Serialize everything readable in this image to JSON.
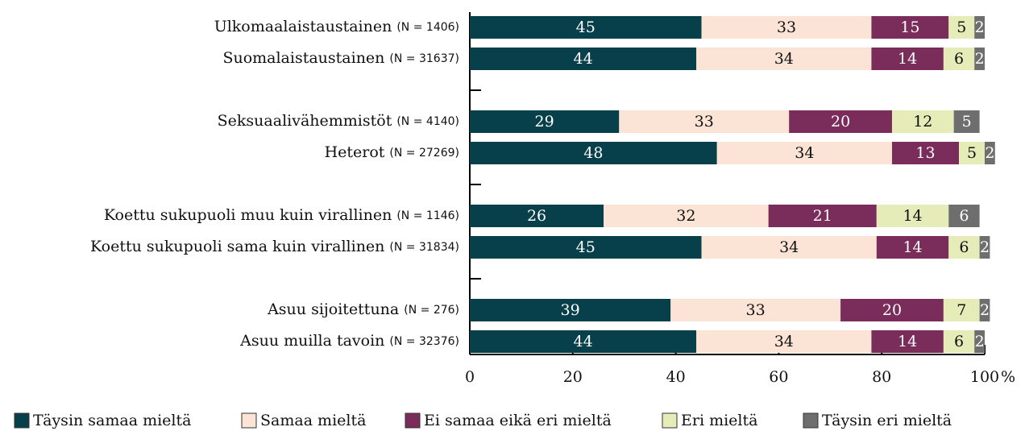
{
  "chart_data": {
    "type": "stacked_bar_horizontal",
    "categories": [
      "Ulkomaalaistaustainen",
      "Suomalaistaustainen",
      null,
      "Seksuaalivähemmistöt",
      "Heterot",
      null,
      "Koettu sukupuoli muu kuin virallinen",
      "Koettu sukupuoli sama kuin virallinen",
      null,
      "Asuu sijoitettuna",
      "Asuu muilla tavoin"
    ],
    "n_labels": [
      "(N = 1406)",
      "(N = 31637)",
      null,
      "(N = 4140)",
      "(N = 27269)",
      null,
      "(N = 1146)",
      "(N = 31834)",
      null,
      "(N = 276)",
      "(N = 32376)"
    ],
    "series": [
      {
        "name": "Täysin samaa mieltä",
        "color": "#073f4b",
        "values": [
          45,
          44,
          null,
          29,
          48,
          null,
          26,
          45,
          null,
          39,
          44
        ]
      },
      {
        "name": "Samaa mieltä",
        "color": "#fbe4d6",
        "values": [
          33,
          34,
          null,
          33,
          34,
          null,
          32,
          34,
          null,
          33,
          34
        ]
      },
      {
        "name": "Ei samaa eikä eri mieltä",
        "color": "#7a2c5b",
        "values": [
          15,
          14,
          null,
          20,
          13,
          null,
          21,
          14,
          null,
          20,
          14
        ]
      },
      {
        "name": "Eri mieltä",
        "color": "#e6ecb8",
        "values": [
          5,
          6,
          null,
          12,
          5,
          null,
          14,
          6,
          null,
          7,
          6
        ]
      },
      {
        "name": "Täysin eri mieltä",
        "color": "#6e6e6e",
        "values": [
          2,
          2,
          null,
          5,
          2,
          null,
          6,
          2,
          null,
          2,
          2
        ]
      }
    ],
    "xlim": [
      0,
      100
    ],
    "xticks": [
      0,
      20,
      40,
      60,
      80,
      100
    ],
    "x_unit": "%",
    "legend": "bottom"
  }
}
